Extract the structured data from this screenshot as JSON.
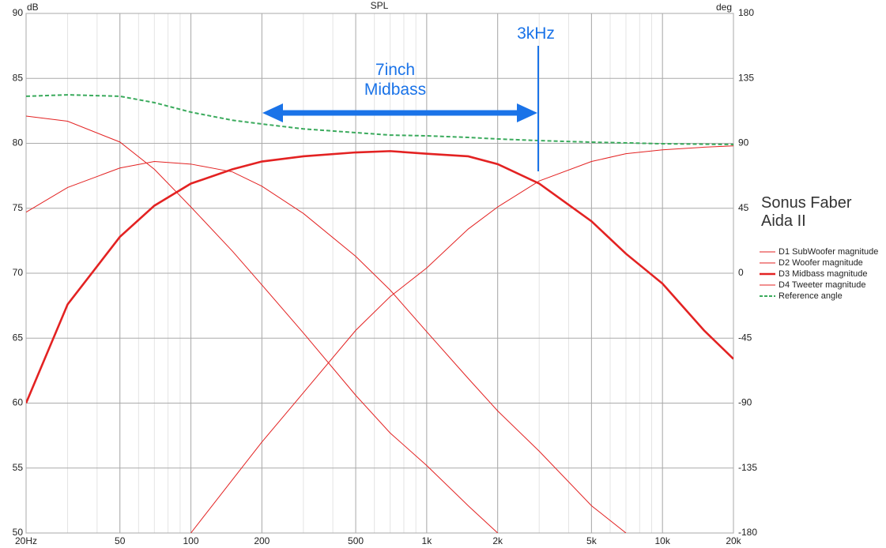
{
  "chart_data": {
    "type": "line",
    "title": "Sonus Faber Aida II",
    "plot_label": "SPL",
    "y_label": "dB",
    "y2_label": "deg",
    "annotations": [
      "7inch Midbass",
      "3kHz"
    ],
    "x_log": true,
    "grid": true,
    "x": [
      20,
      30,
      50,
      70,
      100,
      150,
      200,
      300,
      500,
      700,
      1000,
      1500,
      2000,
      3000,
      5000,
      7000,
      10000,
      15000,
      20000
    ],
    "xlim": [
      20,
      20000
    ],
    "xticks": [
      {
        "value": 20,
        "label": "20Hz"
      },
      50,
      100,
      200,
      500,
      {
        "value": 1000,
        "label": "1k"
      },
      {
        "value": 2000,
        "label": "2k"
      },
      {
        "value": 5000,
        "label": "5k"
      },
      {
        "value": 10000,
        "label": "10k"
      },
      {
        "value": 20000,
        "label": "20k"
      }
    ],
    "ylim": [
      50,
      90
    ],
    "yticks": [
      50,
      55,
      60,
      65,
      70,
      75,
      80,
      85,
      90
    ],
    "y2lim": [
      -180,
      180
    ],
    "y2ticks": [
      -180,
      -135,
      -90,
      -45,
      0,
      45,
      90,
      135,
      180
    ],
    "series": [
      {
        "name": "D1 SubWoofer magnitude",
        "color": "#e32222",
        "width": 1,
        "values": [
          82.1,
          81.7,
          80.1,
          78.0,
          75.1,
          71.7,
          69.1,
          65.4,
          60.6,
          57.7,
          55.2,
          52.1,
          50,
          null,
          null,
          null,
          null,
          null,
          null
        ]
      },
      {
        "name": "D2 Woofer magnitude",
        "color": "#e32222",
        "width": 1,
        "values": [
          74.7,
          76.6,
          78.1,
          78.6,
          78.4,
          77.8,
          76.7,
          74.6,
          71.3,
          68.7,
          65.5,
          61.9,
          59.4,
          56.3,
          52.1,
          50,
          null,
          null,
          null
        ]
      },
      {
        "name": "D3 Midbass magnitude",
        "color": "#e32222",
        "width": 2.6,
        "values": [
          60,
          67.6,
          72.8,
          75.2,
          76.9,
          78.0,
          78.6,
          79.0,
          79.3,
          79.4,
          79.2,
          79.0,
          78.4,
          76.9,
          74.0,
          71.5,
          69.2,
          65.6,
          63.4
        ]
      },
      {
        "name": "D4 Tweeter magnitude",
        "color": "#e32222",
        "width": 1,
        "values": [
          null,
          null,
          null,
          null,
          50,
          54.1,
          57.0,
          60.8,
          65.6,
          68.2,
          70.4,
          73.4,
          75.1,
          77.1,
          78.6,
          79.2,
          79.5,
          79.7,
          79.8
        ]
      },
      {
        "name": "Reference angle",
        "color": "#3aaa5c",
        "width": 2,
        "dash": true,
        "axis": "y2",
        "values": [
          122.6,
          123.6,
          122.6,
          118.2,
          111.6,
          106,
          103.4,
          100,
          97.4,
          95.7,
          95.2,
          94.1,
          93,
          91.9,
          90.8,
          90.3,
          89.7,
          89.4,
          89.2
        ]
      }
    ]
  }
}
